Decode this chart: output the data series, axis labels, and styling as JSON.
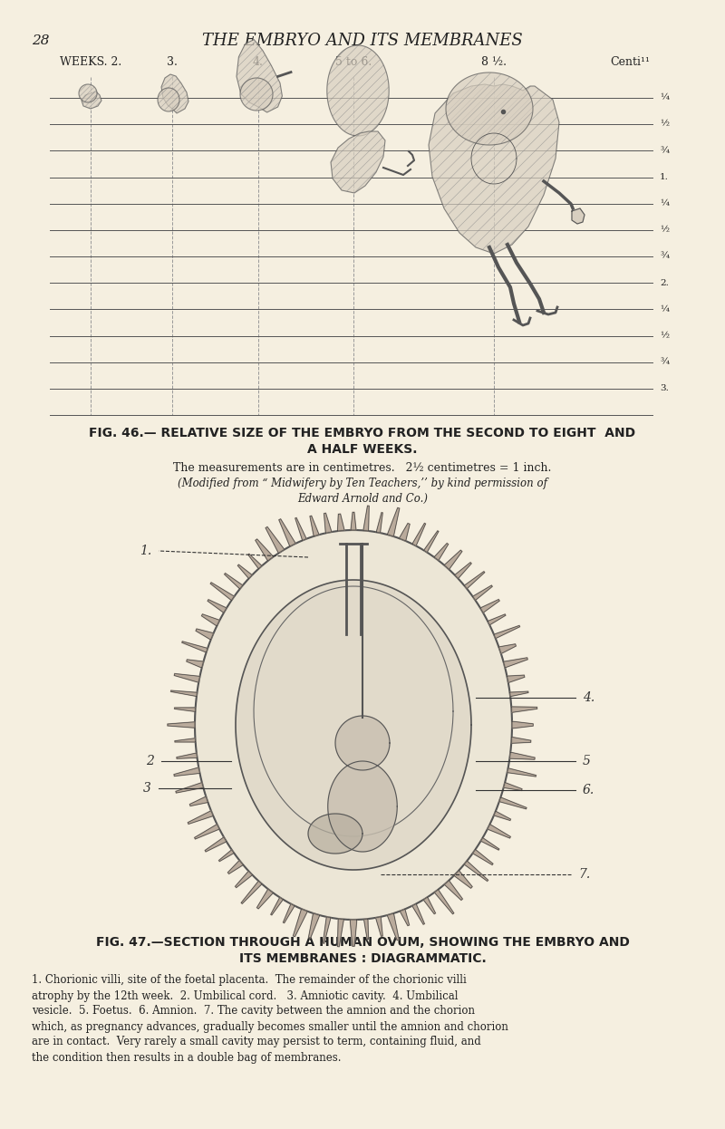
{
  "bg_color": "#f5efe0",
  "page_number": "28",
  "page_header": "THE EMBRYO AND ITS MEMBRANES",
  "fig46_title_line1": "FIG. 46.— RELATIVE SIZE OF THE EMBRYO FROM THE SECOND TO EIGHT  AND",
  "fig46_title_line2": "A HALF WEEKS.",
  "fig46_caption1": "The measurements are in centimetres.   2½ centimetres = 1 inch.",
  "fig46_caption2": "(Modified from “ Midwifery by Ten Teachers,’’ by kind permission of",
  "fig46_caption3": "Edward Arnold and Co.)",
  "fig47_title_line1": "FIG. 47.—SECTION THROUGH A HUMAN OVUM, SHOWING THE EMBRYO AND",
  "fig47_title_line2": "ITS MEMBRANES : DIAGRAMMATIC.",
  "fig47_body": "1. Chorionic villi, site of the foetal placenta.  The remainder of the chorionic villi\natrophy by the 12th week.  2. Umbilical cord.   3. Amniotic cavity.  4. Umbilical\nvesicle.  5. Foetus.  6. Amnion.  7. The cavity between the amnion and the chorion\nwhich, as pregnancy advances, gradually becomes smaller until the amnion and chorion\nare in contact.  Very rarely a small cavity may persist to term, containing fluid, and\nthe condition then results in a double bag of membranes.",
  "line_color": "#555555",
  "text_color": "#222222",
  "embryo_fill": "#d8cfc0",
  "hatch_color": "#888888"
}
